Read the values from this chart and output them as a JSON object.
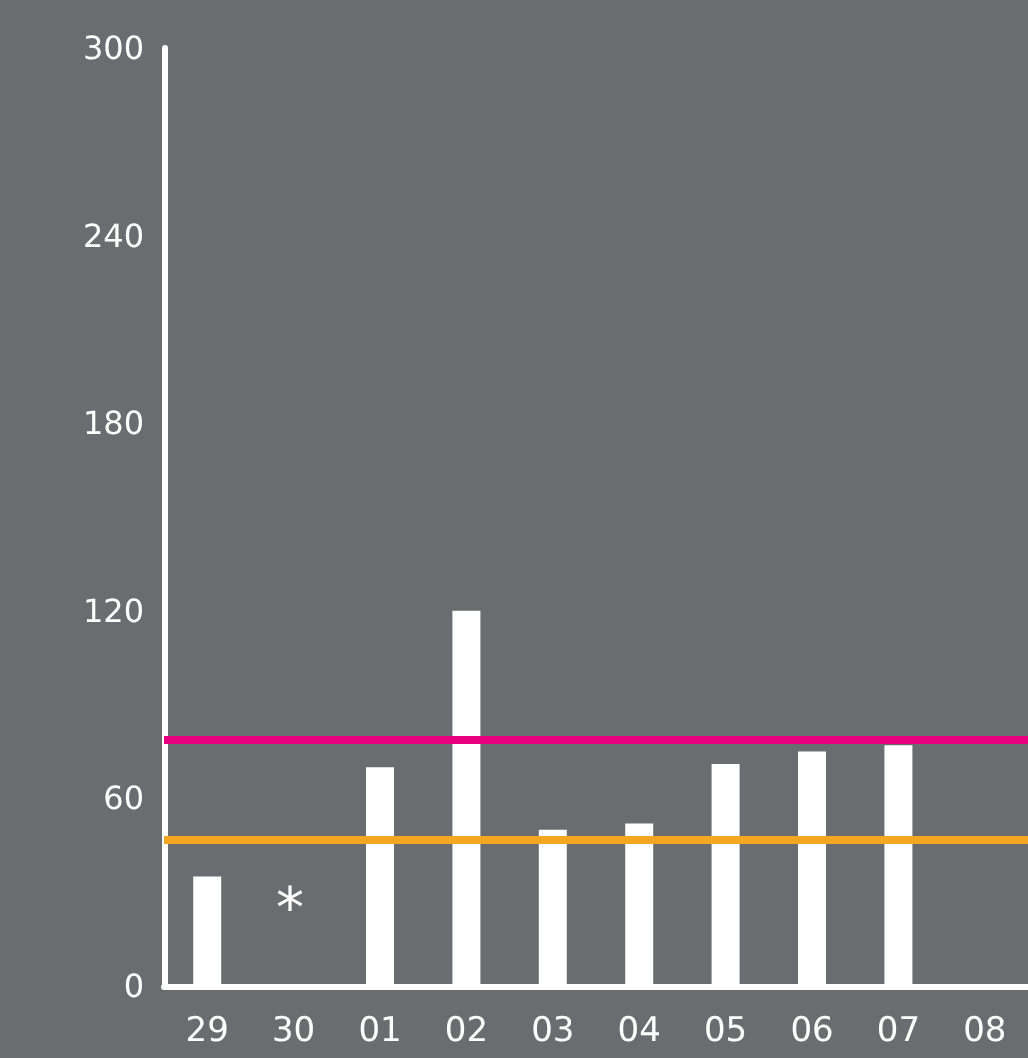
{
  "chart_data": {
    "type": "bar",
    "categories": [
      "29",
      "30",
      "01",
      "02",
      "03",
      "04",
      "05",
      "06",
      "07",
      "08"
    ],
    "values": [
      35,
      null,
      70,
      120,
      50,
      52,
      71,
      75,
      77,
      null
    ],
    "color": "#ffffff",
    "ylim": [
      0,
      300
    ],
    "yticks": [
      0,
      60,
      120,
      180,
      240,
      300
    ],
    "grid": false,
    "ref_lines": [
      {
        "axis": "y",
        "value": 79,
        "color": "#e6007e"
      },
      {
        "axis": "y",
        "value": 47,
        "color": "#f5a623"
      }
    ],
    "annotations": [
      "*"
    ]
  }
}
